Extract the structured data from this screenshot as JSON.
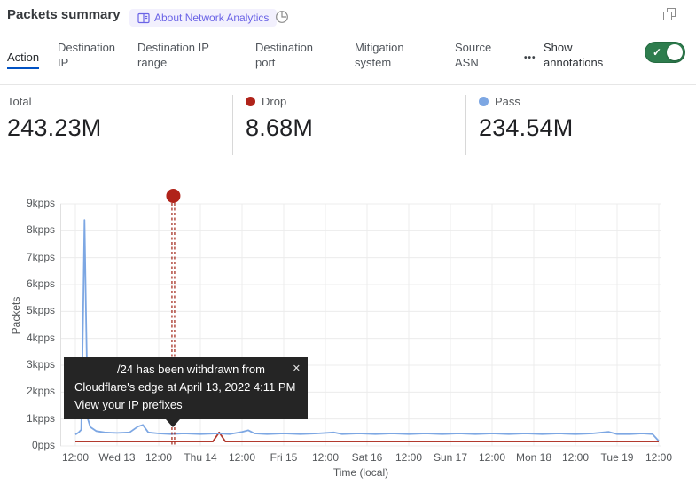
{
  "header": {
    "title": "Packets summary",
    "badge_label": "About Network Analytics"
  },
  "tabs": {
    "items": [
      {
        "label": "Action",
        "active": true
      },
      {
        "label": "Destination IP",
        "active": false
      },
      {
        "label": "Destination IP range",
        "active": false
      },
      {
        "label": "Destination port",
        "active": false
      },
      {
        "label": "Mitigation system",
        "active": false
      },
      {
        "label": "Source ASN",
        "active": false
      }
    ],
    "more_icon": "•••",
    "annotations_label": "Show annotations",
    "annotations_toggle_on": true,
    "toggle_color": "#2e7d4e",
    "check_icon": "✓"
  },
  "stats": [
    {
      "label": "Total",
      "value": "243.23M"
    },
    {
      "label": "Drop",
      "value": "8.68M",
      "color": "#b0231a"
    },
    {
      "label": "Pass",
      "value": "234.54M",
      "color": "#7da7e3"
    }
  ],
  "tooltip": {
    "line1": "/24 has been withdrawn from",
    "line2": "Cloudflare's edge at April 13, 2022 4:11 PM",
    "link": "View your IP prefixes",
    "close": "✕"
  },
  "chart_data": {
    "type": "line",
    "title": "Packets summary",
    "ylabel": "Packets",
    "xlabel": "Time (local)",
    "ylim": [
      0,
      9
    ],
    "y_unit": "kpps",
    "y_ticks": [
      "9kpps",
      "8kpps",
      "7kpps",
      "6kpps",
      "5kpps",
      "4kpps",
      "3kpps",
      "2kpps",
      "1kpps",
      "0pps"
    ],
    "x_ticks": [
      "12:00",
      "Wed 13",
      "12:00",
      "Thu 14",
      "12:00",
      "Fri 15",
      "12:00",
      "Sat 16",
      "12:00",
      "Sun 17",
      "12:00",
      "Mon 18",
      "12:00",
      "Tue 19",
      "12:00"
    ],
    "grid": true,
    "series": [
      {
        "name": "Pass",
        "color": "#7da7e3",
        "unit": "kpps",
        "points": [
          [
            0,
            0.42
          ],
          [
            0.08,
            0.5
          ],
          [
            0.14,
            0.6
          ],
          [
            0.19,
            5.2
          ],
          [
            0.22,
            8.4
          ],
          [
            0.26,
            4.5
          ],
          [
            0.3,
            1.0
          ],
          [
            0.36,
            0.7
          ],
          [
            0.5,
            0.55
          ],
          [
            0.7,
            0.5
          ],
          [
            1.0,
            0.48
          ],
          [
            1.3,
            0.5
          ],
          [
            1.5,
            0.72
          ],
          [
            1.62,
            0.78
          ],
          [
            1.75,
            0.5
          ],
          [
            2.0,
            0.46
          ],
          [
            2.3,
            0.44
          ],
          [
            2.6,
            0.46
          ],
          [
            3.0,
            0.44
          ],
          [
            3.4,
            0.46
          ],
          [
            3.7,
            0.44
          ],
          [
            4.0,
            0.52
          ],
          [
            4.15,
            0.58
          ],
          [
            4.3,
            0.46
          ],
          [
            4.6,
            0.44
          ],
          [
            5.0,
            0.46
          ],
          [
            5.4,
            0.44
          ],
          [
            5.8,
            0.46
          ],
          [
            6.2,
            0.5
          ],
          [
            6.4,
            0.44
          ],
          [
            6.8,
            0.46
          ],
          [
            7.2,
            0.44
          ],
          [
            7.6,
            0.46
          ],
          [
            8.0,
            0.44
          ],
          [
            8.4,
            0.46
          ],
          [
            8.8,
            0.44
          ],
          [
            9.2,
            0.46
          ],
          [
            9.6,
            0.44
          ],
          [
            10.0,
            0.46
          ],
          [
            10.4,
            0.44
          ],
          [
            10.8,
            0.46
          ],
          [
            11.2,
            0.44
          ],
          [
            11.6,
            0.46
          ],
          [
            12.0,
            0.44
          ],
          [
            12.4,
            0.46
          ],
          [
            12.8,
            0.52
          ],
          [
            13.0,
            0.44
          ],
          [
            13.3,
            0.44
          ],
          [
            13.6,
            0.46
          ],
          [
            13.85,
            0.44
          ],
          [
            14.0,
            0.18
          ]
        ]
      },
      {
        "name": "Drop",
        "color": "#b23a2e",
        "unit": "kpps",
        "points": [
          [
            0,
            0.16
          ],
          [
            1,
            0.16
          ],
          [
            2,
            0.16
          ],
          [
            3,
            0.16
          ],
          [
            3.3,
            0.16
          ],
          [
            3.45,
            0.5
          ],
          [
            3.6,
            0.16
          ],
          [
            4,
            0.16
          ],
          [
            5,
            0.16
          ],
          [
            6,
            0.16
          ],
          [
            7,
            0.16
          ],
          [
            8,
            0.16
          ],
          [
            9,
            0.16
          ],
          [
            10,
            0.16
          ],
          [
            11,
            0.16
          ],
          [
            12,
            0.16
          ],
          [
            13,
            0.16
          ],
          [
            14,
            0.16
          ]
        ]
      }
    ],
    "annotation": {
      "x_tick_units": 2.35,
      "line_color": "#9e1f12",
      "dot_color": "#b0231a",
      "label": "/24 has been withdrawn from Cloudflare's edge at April 13, 2022 4:11 PM"
    }
  }
}
